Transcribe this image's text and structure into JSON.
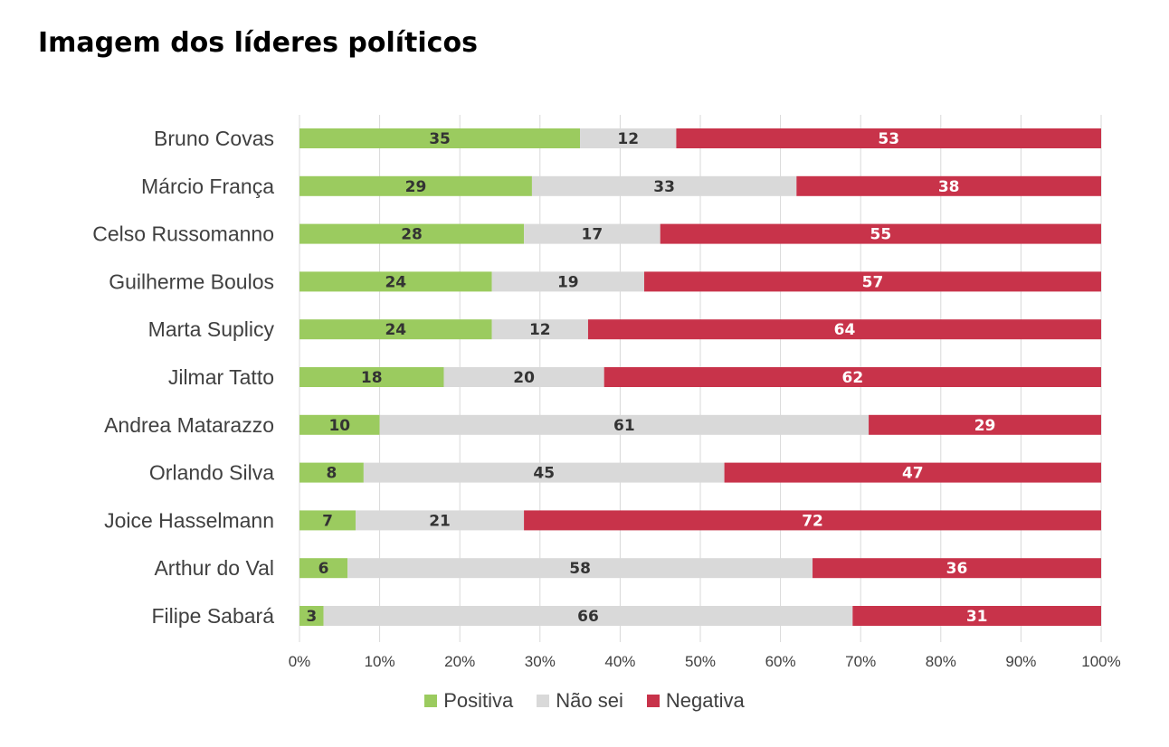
{
  "title": "Imagem dos líderes políticos",
  "chart_data": {
    "type": "bar",
    "orientation": "horizontal",
    "stacked": "percent",
    "title": "Imagem dos líderes políticos",
    "categories": [
      "Bruno Covas",
      "Márcio França",
      "Celso Russomanno",
      "Guilherme Boulos",
      "Marta Suplicy",
      "Jilmar Tatto",
      "Andrea Matarazzo",
      "Orlando Silva",
      "Joice Hasselmann",
      "Arthur do Val",
      "Filipe Sabará"
    ],
    "series": [
      {
        "name": "Positiva",
        "color": "#9BCB5F",
        "label_color": "#333333",
        "values": [
          35,
          29,
          28,
          24,
          24,
          18,
          10,
          8,
          7,
          6,
          3
        ]
      },
      {
        "name": "Não sei",
        "color": "#D9D9D9",
        "label_color": "#333333",
        "values": [
          12,
          33,
          17,
          19,
          12,
          20,
          61,
          45,
          21,
          58,
          66
        ]
      },
      {
        "name": "Negativa",
        "color": "#C8334A",
        "label_color": "#FFFFFF",
        "values": [
          53,
          38,
          55,
          57,
          64,
          62,
          29,
          47,
          72,
          36,
          31
        ]
      }
    ],
    "xlim": [
      0,
      100
    ],
    "x_ticks": [
      "0%",
      "10%",
      "20%",
      "30%",
      "40%",
      "50%",
      "60%",
      "70%",
      "80%",
      "90%",
      "100%"
    ],
    "grid": true,
    "legend": "bottom"
  }
}
